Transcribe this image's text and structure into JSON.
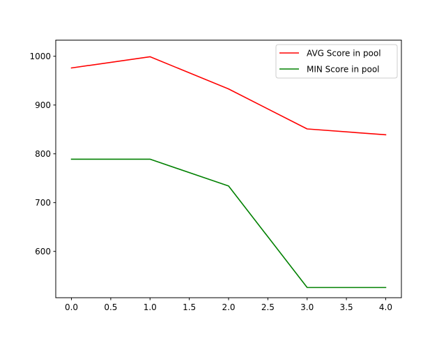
{
  "chart_data": {
    "type": "line",
    "title": "",
    "xlabel": "",
    "ylabel": "",
    "x": [
      0,
      1,
      2,
      3,
      4
    ],
    "xlim": [
      -0.2,
      4.2
    ],
    "ylim": [
      505,
      1033
    ],
    "xticks": [
      0.0,
      0.5,
      1.0,
      1.5,
      2.0,
      2.5,
      3.0,
      3.5,
      4.0
    ],
    "xtick_labels": [
      "0.0",
      "0.5",
      "1.0",
      "1.5",
      "2.0",
      "2.5",
      "3.0",
      "3.5",
      "4.0"
    ],
    "yticks": [
      600,
      700,
      800,
      900,
      1000
    ],
    "ytick_labels": [
      "600",
      "700",
      "800",
      "900",
      "1000"
    ],
    "grid": false,
    "legend_position": "top-right",
    "series": [
      {
        "name": "AVG Score in pool",
        "color": "#ff0000",
        "values": [
          976,
          999,
          933,
          851,
          839
        ]
      },
      {
        "name": "MIN Score in pool",
        "color": "#008000",
        "values": [
          789,
          789,
          734,
          526,
          526
        ]
      }
    ]
  }
}
